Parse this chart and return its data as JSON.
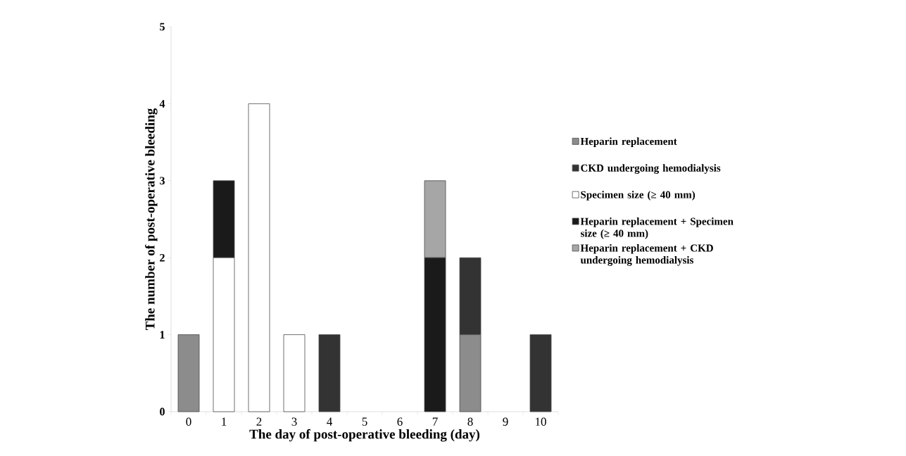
{
  "chart_data": {
    "type": "bar",
    "stacked": true,
    "xlabel": "The day of post-operative bleeding (day)",
    "ylabel": "The number of post-operative bleeding",
    "categories": [
      "0",
      "1",
      "2",
      "3",
      "4",
      "5",
      "6",
      "7",
      "8",
      "9",
      "10"
    ],
    "ylim": [
      0,
      5
    ],
    "yticks": [
      0,
      1,
      2,
      3,
      4,
      5
    ],
    "grid": false,
    "legend": "right",
    "series": [
      {
        "name": "Heparin replacement",
        "color": "#8c8c8c",
        "values": [
          1,
          0,
          0,
          0,
          0,
          0,
          0,
          0,
          1,
          0,
          0
        ]
      },
      {
        "name": "CKD undergoing hemodialysis",
        "color": "#333333",
        "values": [
          0,
          0,
          0,
          0,
          1,
          0,
          0,
          0,
          1,
          0,
          1
        ]
      },
      {
        "name": "Specimen size (≥ 40 mm)",
        "color": "#ffffff",
        "values": [
          0,
          2,
          4,
          1,
          0,
          0,
          0,
          0,
          0,
          0,
          0
        ]
      },
      {
        "name": "Heparin replacement + Specimen size (≥ 40 mm)",
        "color": "#1a1a1a",
        "values": [
          0,
          1,
          0,
          0,
          0,
          0,
          0,
          2,
          0,
          0,
          0
        ]
      },
      {
        "name": "Heparin replacement  + CKD undergoing hemodialysis",
        "color": "#a6a6a6",
        "values": [
          0,
          0,
          0,
          0,
          0,
          0,
          0,
          1,
          0,
          0,
          0
        ]
      }
    ]
  }
}
